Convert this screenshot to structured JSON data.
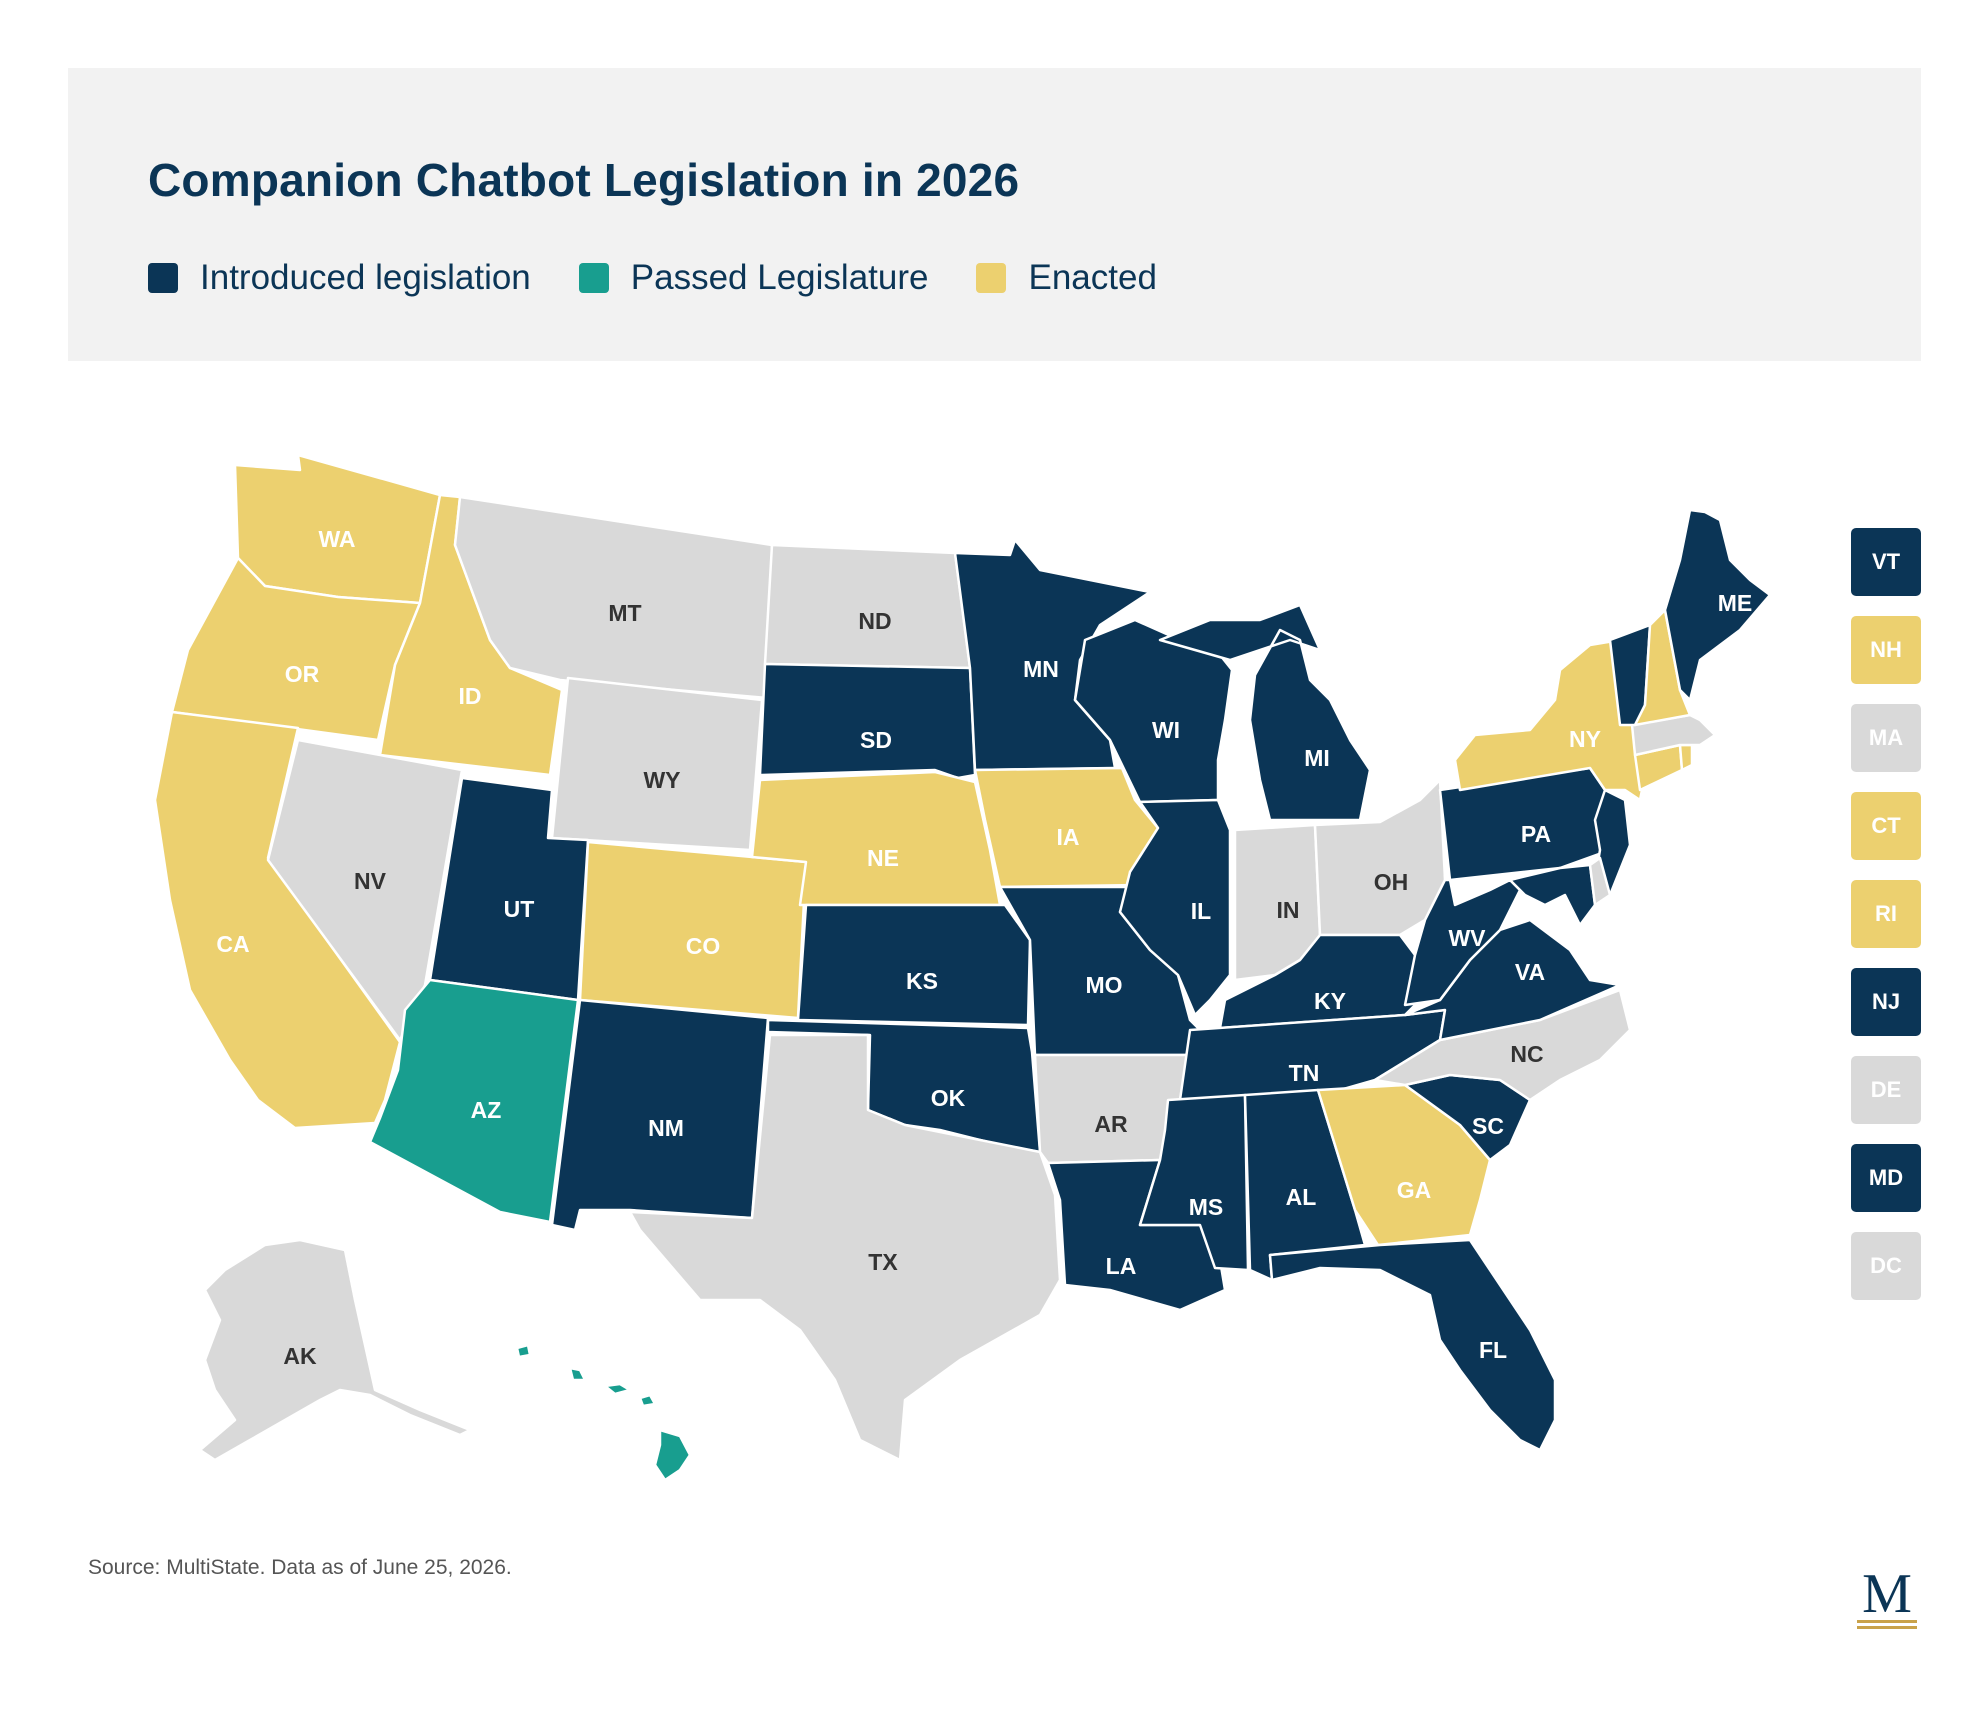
{
  "title": "Companion Chatbot Legislation in 2026",
  "legend": [
    {
      "key": "introduced",
      "label": "Introduced legislation",
      "color": "#0b3556"
    },
    {
      "key": "passed",
      "label": "Passed Legislature",
      "color": "#189e8f"
    },
    {
      "key": "enacted",
      "label": "Enacted",
      "color": "#ecd06f"
    }
  ],
  "no_action_color": "#d9d9d9",
  "states": {
    "WA": "enacted",
    "OR": "enacted",
    "CA": "enacted",
    "ID": "enacted",
    "NV": "none",
    "MT": "none",
    "WY": "none",
    "UT": "introduced",
    "AZ": "passed",
    "CO": "enacted",
    "NM": "introduced",
    "ND": "none",
    "SD": "introduced",
    "NE": "enacted",
    "KS": "introduced",
    "OK": "introduced",
    "TX": "none",
    "MN": "introduced",
    "IA": "enacted",
    "MO": "introduced",
    "AR": "none",
    "LA": "introduced",
    "WI": "introduced",
    "IL": "introduced",
    "MI": "introduced",
    "IN": "none",
    "OH": "none",
    "KY": "introduced",
    "TN": "introduced",
    "MS": "introduced",
    "AL": "introduced",
    "GA": "enacted",
    "FL": "introduced",
    "SC": "introduced",
    "NC": "none",
    "VA": "introduced",
    "WV": "introduced",
    "PA": "introduced",
    "NY": "enacted",
    "ME": "introduced",
    "VT": "introduced",
    "NH": "enacted",
    "MA": "none",
    "CT": "enacted",
    "RI": "enacted",
    "NJ": "introduced",
    "DE": "none",
    "MD": "introduced",
    "DC": "none",
    "AK": "none",
    "HI": "passed"
  },
  "side_boxes": [
    "VT",
    "NH",
    "MA",
    "CT",
    "RI",
    "NJ",
    "DE",
    "MD",
    "DC"
  ],
  "source": "Source: MultiState. Data as of June 25, 2026.",
  "logo_letter": "M"
}
